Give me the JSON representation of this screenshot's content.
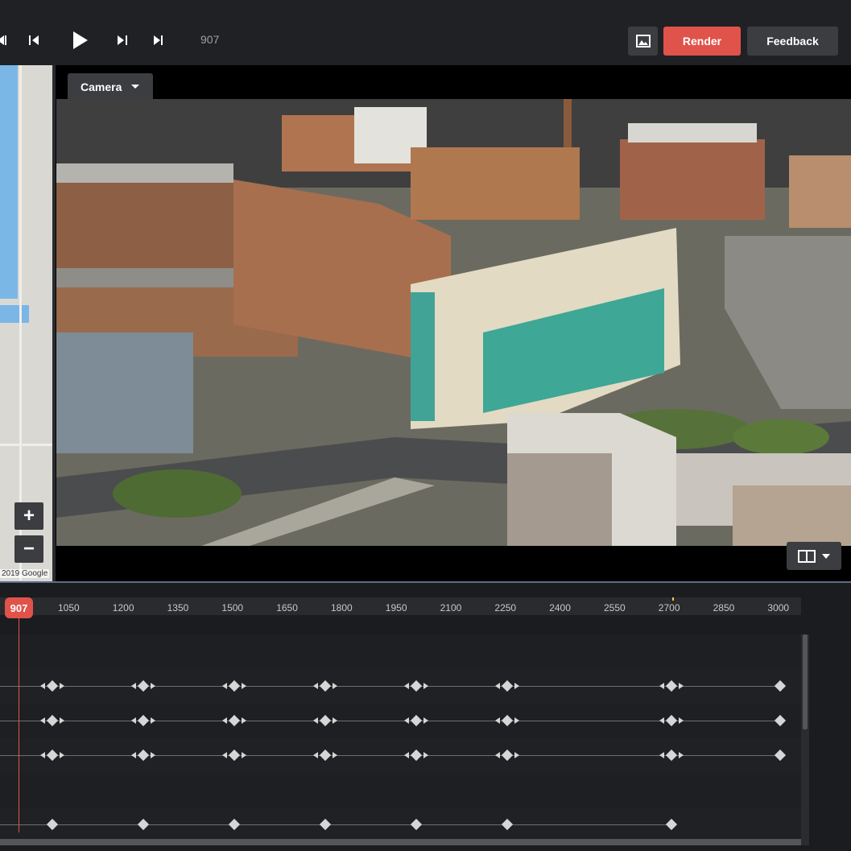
{
  "toolbar": {
    "frame_counter": "907",
    "render_label": "Render",
    "feedback_label": "Feedback",
    "accent_color": "#e0534a"
  },
  "map": {
    "zoom_in": "+",
    "zoom_out": "−",
    "attribution": "2019 Google"
  },
  "viewport": {
    "camera_label": "Camera"
  },
  "timeline": {
    "current_frame": "907",
    "ticks": [
      "1050",
      "1200",
      "1350",
      "1500",
      "1650",
      "1800",
      "1950",
      "2100",
      "2250",
      "2400",
      "2550",
      "2700",
      "2850",
      "3000"
    ]
  }
}
